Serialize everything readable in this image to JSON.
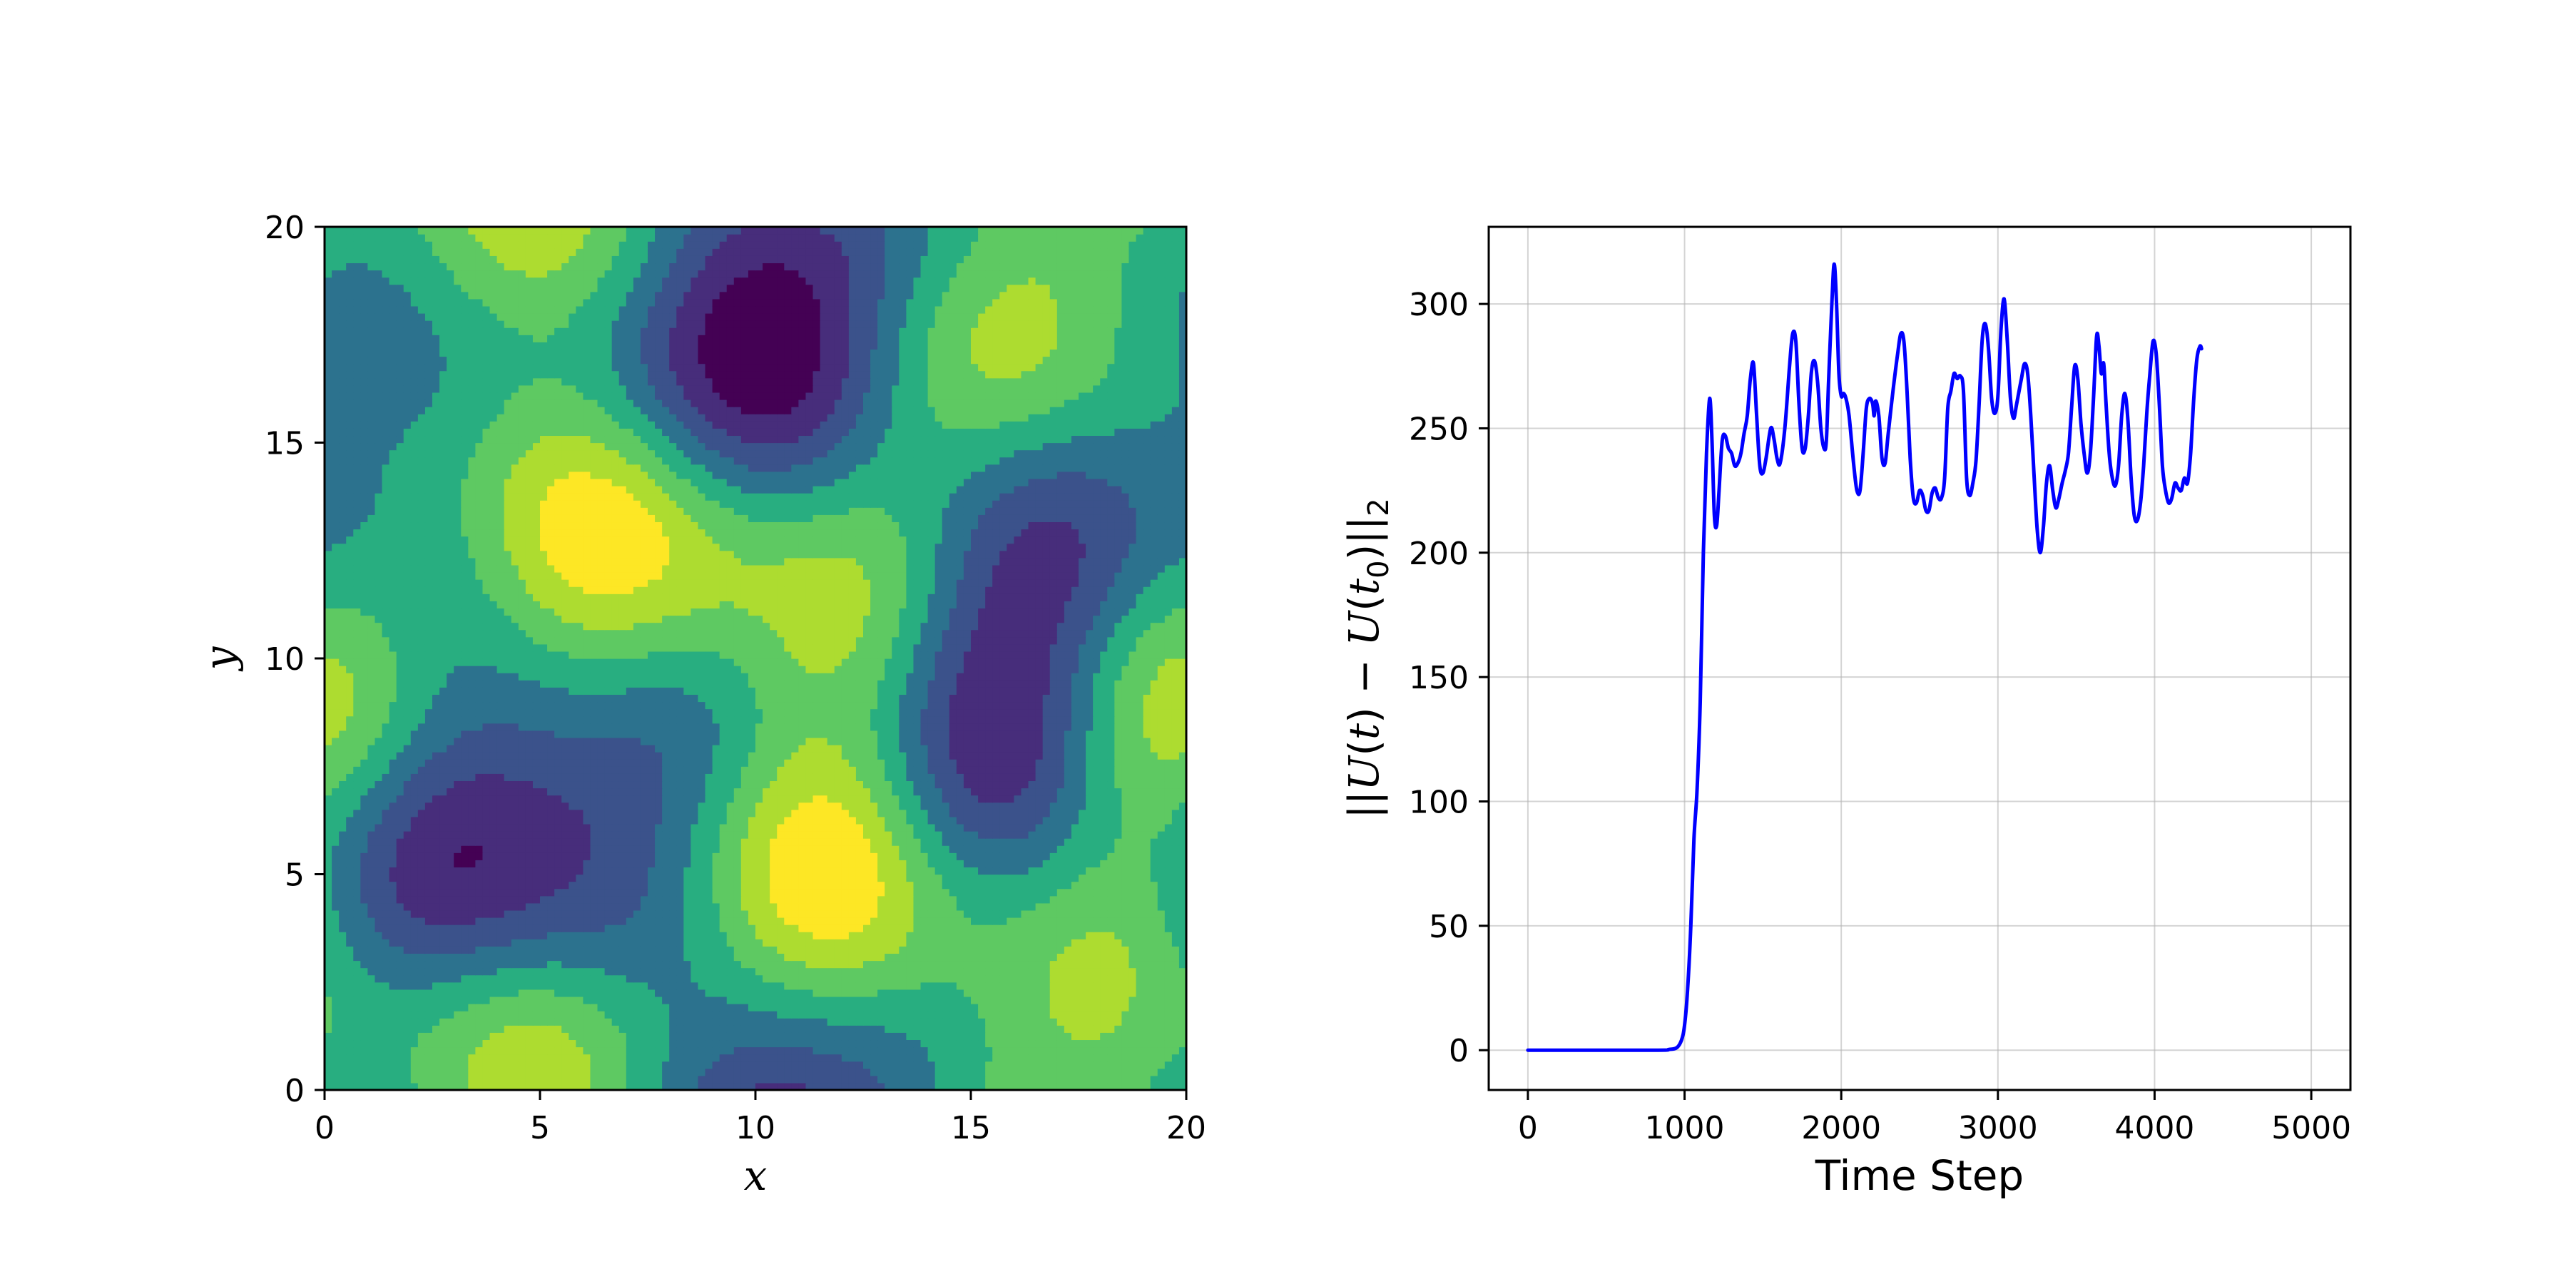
{
  "chart_data": [
    {
      "type": "heatmap",
      "subtype": "filled-contour",
      "colormap": "viridis",
      "xlabel": "x",
      "ylabel": "y",
      "xlim": [
        0,
        20
      ],
      "ylim": [
        0,
        20
      ],
      "xticks": [
        "0",
        "5",
        "10",
        "15",
        "20"
      ],
      "yticks": [
        "0",
        "5",
        "10",
        "15",
        "20"
      ],
      "levels": 8,
      "field": {
        "mean": 0.0,
        "components": [
          {
            "kx": 1,
            "ky": 1,
            "amp": 0.45,
            "phase": 0.4
          },
          {
            "kx": 2,
            "ky": -1,
            "amp": 0.38,
            "phase": 2.1
          },
          {
            "kx": -1,
            "ky": 2,
            "amp": 0.32,
            "phase": 1.0
          },
          {
            "kx": 2,
            "ky": 1,
            "amp": 0.3,
            "phase": 3.6
          },
          {
            "kx": 0,
            "ky": 2,
            "amp": 0.22,
            "phase": 5.0
          },
          {
            "kx": 3,
            "ky": 0,
            "amp": 0.2,
            "phase": 0.9
          },
          {
            "kx": 1,
            "ky": 3,
            "amp": 0.18,
            "phase": 4.2
          },
          {
            "kx": -3,
            "ky": 1,
            "amp": 0.16,
            "phase": 2.7
          }
        ]
      }
    },
    {
      "type": "line",
      "xlabel": "Time Step",
      "ylabel_parts": [
        {
          "text": "||",
          "italic": false
        },
        {
          "text": "U",
          "italic": true
        },
        {
          "text": "(",
          "italic": false
        },
        {
          "text": "t",
          "italic": true
        },
        {
          "text": ") − ",
          "italic": false
        },
        {
          "text": "U",
          "italic": true
        },
        {
          "text": "(",
          "italic": false
        },
        {
          "text": "t",
          "italic": true
        },
        {
          "text": "0",
          "italic": false,
          "sub": true
        },
        {
          "text": ")||",
          "italic": false
        },
        {
          "text": "2",
          "italic": false,
          "sub": true
        }
      ],
      "xlim": [
        -250,
        5250
      ],
      "ylim": [
        -16,
        331
      ],
      "xticks": [
        "0",
        "1000",
        "2000",
        "3000",
        "4000",
        "5000"
      ],
      "yticks": [
        "0",
        "50",
        "100",
        "150",
        "200",
        "250",
        "300"
      ],
      "grid": true,
      "color": "#0000ff",
      "series": [
        {
          "points": [
            [
              0,
              0
            ],
            [
              800,
              0
            ],
            [
              900,
              0.3
            ],
            [
              950,
              1
            ],
            [
              980,
              4
            ],
            [
              1000,
              10
            ],
            [
              1020,
              25
            ],
            [
              1040,
              50
            ],
            [
              1060,
              85
            ],
            [
              1080,
              105
            ],
            [
              1100,
              140
            ],
            [
              1120,
              200
            ],
            [
              1140,
              240
            ],
            [
              1160,
              262
            ],
            [
              1175,
              245
            ],
            [
              1190,
              215
            ],
            [
              1205,
              211
            ],
            [
              1220,
              225
            ],
            [
              1240,
              245
            ],
            [
              1260,
              247
            ],
            [
              1280,
              242
            ],
            [
              1300,
              240
            ],
            [
              1320,
              235
            ],
            [
              1340,
              236
            ],
            [
              1360,
              240
            ],
            [
              1380,
              248
            ],
            [
              1400,
              255
            ],
            [
              1420,
              270
            ],
            [
              1440,
              276
            ],
            [
              1460,
              255
            ],
            [
              1480,
              235
            ],
            [
              1500,
              232
            ],
            [
              1520,
              238
            ],
            [
              1550,
              250
            ],
            [
              1570,
              246
            ],
            [
              1590,
              238
            ],
            [
              1610,
              236
            ],
            [
              1640,
              250
            ],
            [
              1670,
              275
            ],
            [
              1690,
              288
            ],
            [
              1710,
              285
            ],
            [
              1730,
              260
            ],
            [
              1750,
              242
            ],
            [
              1770,
              242
            ],
            [
              1790,
              255
            ],
            [
              1810,
              273
            ],
            [
              1830,
              277
            ],
            [
              1850,
              268
            ],
            [
              1870,
              250
            ],
            [
              1890,
              242
            ],
            [
              1905,
              245
            ],
            [
              1920,
              270
            ],
            [
              1940,
              300
            ],
            [
              1955,
              316
            ],
            [
              1970,
              300
            ],
            [
              1985,
              272
            ],
            [
              2000,
              263
            ],
            [
              2015,
              264
            ],
            [
              2030,
              262
            ],
            [
              2050,
              255
            ],
            [
              2080,
              235
            ],
            [
              2100,
              225
            ],
            [
              2120,
              225
            ],
            [
              2140,
              240
            ],
            [
              2160,
              258
            ],
            [
              2180,
              262
            ],
            [
              2200,
              260
            ],
            [
              2210,
              255
            ],
            [
              2220,
              261
            ],
            [
              2240,
              255
            ],
            [
              2260,
              238
            ],
            [
              2280,
              236
            ],
            [
              2300,
              248
            ],
            [
              2330,
              265
            ],
            [
              2360,
              280
            ],
            [
              2380,
              288
            ],
            [
              2400,
              285
            ],
            [
              2420,
              265
            ],
            [
              2440,
              238
            ],
            [
              2460,
              222
            ],
            [
              2480,
              220
            ],
            [
              2500,
              225
            ],
            [
              2520,
              223
            ],
            [
              2540,
              217
            ],
            [
              2560,
              217
            ],
            [
              2580,
              224
            ],
            [
              2600,
              226
            ],
            [
              2620,
              222
            ],
            [
              2640,
              222
            ],
            [
              2660,
              230
            ],
            [
              2680,
              258
            ],
            [
              2700,
              265
            ],
            [
              2720,
              272
            ],
            [
              2740,
              270
            ],
            [
              2760,
              271
            ],
            [
              2780,
              265
            ],
            [
              2800,
              230
            ],
            [
              2820,
              223
            ],
            [
              2840,
              228
            ],
            [
              2860,
              237
            ],
            [
              2880,
              260
            ],
            [
              2900,
              286
            ],
            [
              2920,
              292
            ],
            [
              2940,
              282
            ],
            [
              2960,
              262
            ],
            [
              2980,
              256
            ],
            [
              3000,
              263
            ],
            [
              3020,
              290
            ],
            [
              3040,
              302
            ],
            [
              3060,
              285
            ],
            [
              3080,
              262
            ],
            [
              3100,
              254
            ],
            [
              3120,
              260
            ],
            [
              3150,
              270
            ],
            [
              3170,
              276
            ],
            [
              3190,
              272
            ],
            [
              3210,
              255
            ],
            [
              3230,
              232
            ],
            [
              3250,
              210
            ],
            [
              3270,
              200
            ],
            [
              3290,
              210
            ],
            [
              3310,
              228
            ],
            [
              3330,
              235
            ],
            [
              3350,
              225
            ],
            [
              3370,
              218
            ],
            [
              3390,
              222
            ],
            [
              3410,
              228
            ],
            [
              3430,
              233
            ],
            [
              3450,
              240
            ],
            [
              3470,
              258
            ],
            [
              3490,
              275
            ],
            [
              3510,
              270
            ],
            [
              3530,
              252
            ],
            [
              3550,
              240
            ],
            [
              3570,
              232
            ],
            [
              3590,
              240
            ],
            [
              3610,
              262
            ],
            [
              3630,
              287
            ],
            [
              3645,
              283
            ],
            [
              3660,
              272
            ],
            [
              3675,
              276
            ],
            [
              3690,
              260
            ],
            [
              3710,
              240
            ],
            [
              3730,
              230
            ],
            [
              3750,
              227
            ],
            [
              3770,
              235
            ],
            [
              3790,
              255
            ],
            [
              3810,
              264
            ],
            [
              3830,
              253
            ],
            [
              3850,
              230
            ],
            [
              3870,
              215
            ],
            [
              3890,
              213
            ],
            [
              3910,
              220
            ],
            [
              3930,
              235
            ],
            [
              3950,
              256
            ],
            [
              3970,
              272
            ],
            [
              3990,
              285
            ],
            [
              4010,
              280
            ],
            [
              4030,
              260
            ],
            [
              4050,
              235
            ],
            [
              4070,
              225
            ],
            [
              4090,
              220
            ],
            [
              4110,
              222
            ],
            [
              4130,
              228
            ],
            [
              4150,
              226
            ],
            [
              4170,
              225
            ],
            [
              4190,
              230
            ],
            [
              4210,
              228
            ],
            [
              4230,
              240
            ],
            [
              4250,
              262
            ],
            [
              4270,
              278
            ],
            [
              4290,
              283
            ],
            [
              4300,
              282
            ]
          ]
        }
      ]
    }
  ]
}
